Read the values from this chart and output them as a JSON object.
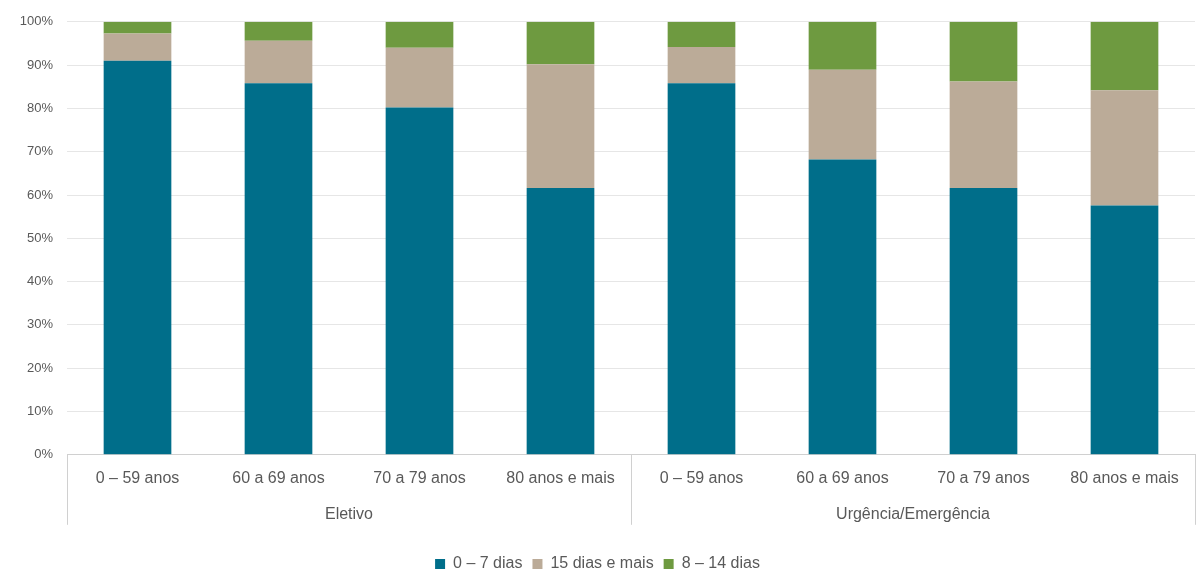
{
  "chart_data": {
    "type": "bar",
    "stacked": true,
    "categories": [
      "0 – 59 anos",
      "60 a 69 anos",
      "70 a 79 anos",
      "80 anos e mais",
      "0 – 59 anos",
      "60 a 69 anos",
      "70 a 79 anos",
      "80 anos e mais"
    ],
    "series": [
      {
        "name": "0 – 7 dias",
        "color": "#006e8a",
        "values": [
          91,
          85.8,
          80.2,
          61.6,
          85.8,
          68.2,
          61.6,
          57.6
        ]
      },
      {
        "name": "15 dias e mais",
        "color": "#bbab98",
        "values": [
          6.3,
          9.8,
          13.8,
          28.6,
          8.4,
          20.7,
          24.6,
          26.6
        ]
      },
      {
        "name": "8 – 14 dias",
        "color": "#6e9a40",
        "values": [
          2.7,
          4.4,
          6,
          9.8,
          5.8,
          11.1,
          13.8,
          15.8
        ]
      }
    ],
    "annotations": [
      "Eletivo",
      "Urgência/Emergência"
    ],
    "ylim": [
      0,
      100
    ],
    "yticks": [
      {
        "value": 0,
        "label": "0%"
      },
      {
        "value": 10,
        "label": "10%"
      },
      {
        "value": 20,
        "label": "20%"
      },
      {
        "value": 30,
        "label": "30%"
      },
      {
        "value": 40,
        "label": "40%"
      },
      {
        "value": 50,
        "label": "50%"
      },
      {
        "value": 60,
        "label": "60%"
      },
      {
        "value": 70,
        "label": "70%"
      },
      {
        "value": 80,
        "label": "80%"
      },
      {
        "value": 90,
        "label": "90%"
      },
      {
        "value": 100,
        "label": "100%"
      }
    ],
    "grid": "y",
    "legend": "bottom"
  }
}
